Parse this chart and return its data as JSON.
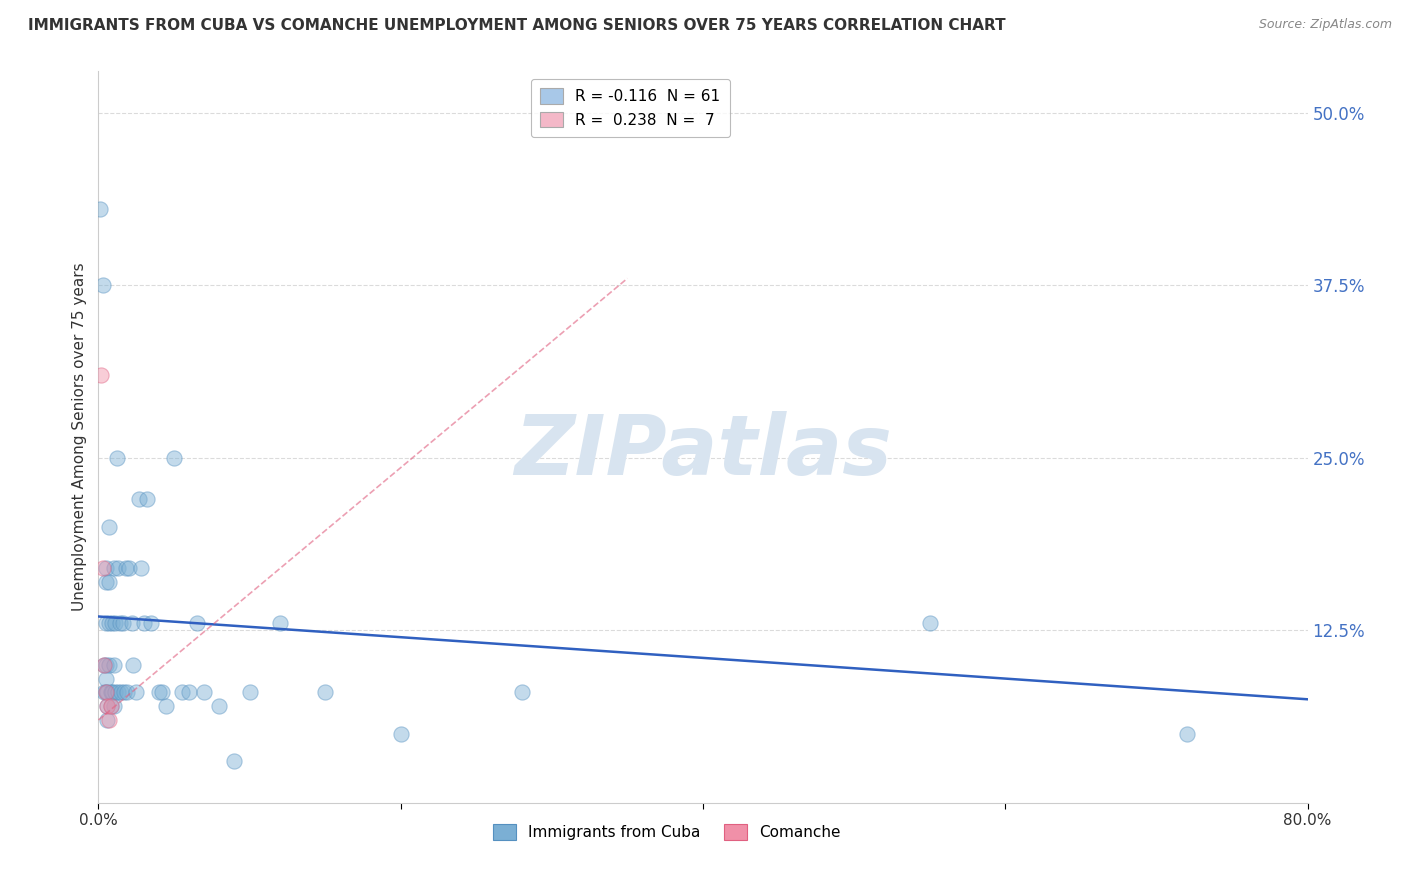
{
  "title": "IMMIGRANTS FROM CUBA VS COMANCHE UNEMPLOYMENT AMONG SENIORS OVER 75 YEARS CORRELATION CHART",
  "source": "Source: ZipAtlas.com",
  "ylabel": "Unemployment Among Seniors over 75 years",
  "xlim": [
    0,
    0.8
  ],
  "ylim": [
    0.0,
    0.53
  ],
  "yticks": [
    0.125,
    0.25,
    0.375,
    0.5
  ],
  "ytick_labels": [
    "12.5%",
    "25.0%",
    "37.5%",
    "50.0%"
  ],
  "xticks": [
    0.0,
    0.2,
    0.4,
    0.6,
    0.8
  ],
  "xtick_labels": [
    "0.0%",
    "",
    "",
    "",
    "80.0%"
  ],
  "legend_entries": [
    {
      "label": "R = -0.116  N = 61",
      "color": "#a8c8e8"
    },
    {
      "label": "R =  0.238  N =  7",
      "color": "#f4b8c8"
    }
  ],
  "blue_scatter": [
    [
      0.001,
      0.43
    ],
    [
      0.003,
      0.375
    ],
    [
      0.004,
      0.1
    ],
    [
      0.004,
      0.08
    ],
    [
      0.005,
      0.17
    ],
    [
      0.005,
      0.16
    ],
    [
      0.005,
      0.13
    ],
    [
      0.005,
      0.1
    ],
    [
      0.005,
      0.09
    ],
    [
      0.005,
      0.08
    ],
    [
      0.006,
      0.08
    ],
    [
      0.006,
      0.07
    ],
    [
      0.006,
      0.06
    ],
    [
      0.007,
      0.2
    ],
    [
      0.007,
      0.16
    ],
    [
      0.007,
      0.13
    ],
    [
      0.007,
      0.1
    ],
    [
      0.008,
      0.08
    ],
    [
      0.008,
      0.07
    ],
    [
      0.009,
      0.13
    ],
    [
      0.009,
      0.08
    ],
    [
      0.01,
      0.17
    ],
    [
      0.01,
      0.1
    ],
    [
      0.01,
      0.07
    ],
    [
      0.011,
      0.13
    ],
    [
      0.011,
      0.08
    ],
    [
      0.012,
      0.25
    ],
    [
      0.013,
      0.17
    ],
    [
      0.013,
      0.08
    ],
    [
      0.014,
      0.13
    ],
    [
      0.015,
      0.08
    ],
    [
      0.016,
      0.13
    ],
    [
      0.017,
      0.08
    ],
    [
      0.018,
      0.17
    ],
    [
      0.019,
      0.08
    ],
    [
      0.02,
      0.17
    ],
    [
      0.022,
      0.13
    ],
    [
      0.023,
      0.1
    ],
    [
      0.025,
      0.08
    ],
    [
      0.027,
      0.22
    ],
    [
      0.028,
      0.17
    ],
    [
      0.03,
      0.13
    ],
    [
      0.032,
      0.22
    ],
    [
      0.035,
      0.13
    ],
    [
      0.04,
      0.08
    ],
    [
      0.042,
      0.08
    ],
    [
      0.045,
      0.07
    ],
    [
      0.05,
      0.25
    ],
    [
      0.055,
      0.08
    ],
    [
      0.06,
      0.08
    ],
    [
      0.065,
      0.13
    ],
    [
      0.07,
      0.08
    ],
    [
      0.08,
      0.07
    ],
    [
      0.09,
      0.03
    ],
    [
      0.1,
      0.08
    ],
    [
      0.12,
      0.13
    ],
    [
      0.15,
      0.08
    ],
    [
      0.2,
      0.05
    ],
    [
      0.28,
      0.08
    ],
    [
      0.55,
      0.13
    ],
    [
      0.72,
      0.05
    ]
  ],
  "pink_scatter": [
    [
      0.002,
      0.31
    ],
    [
      0.003,
      0.17
    ],
    [
      0.004,
      0.1
    ],
    [
      0.005,
      0.08
    ],
    [
      0.006,
      0.07
    ],
    [
      0.007,
      0.06
    ],
    [
      0.008,
      0.07
    ]
  ],
  "blue_line": {
    "x": [
      0.0,
      0.8
    ],
    "y": [
      0.135,
      0.075
    ]
  },
  "pink_line": {
    "x": [
      0.0,
      0.35
    ],
    "y": [
      0.06,
      0.38
    ]
  },
  "scatter_size": 120,
  "scatter_alpha": 0.45,
  "blue_color": "#7bafd4",
  "pink_color": "#f090a8",
  "blue_edge_color": "#5590c0",
  "pink_edge_color": "#e06080",
  "blue_line_color": "#3060c0",
  "pink_line_color": "#e06080",
  "watermark": "ZIPatlas",
  "watermark_color": "#d8e4f0",
  "grid_color": "#cccccc",
  "background_color": "#ffffff",
  "ytick_color": "#4472c4",
  "xtick_color": "#333333"
}
